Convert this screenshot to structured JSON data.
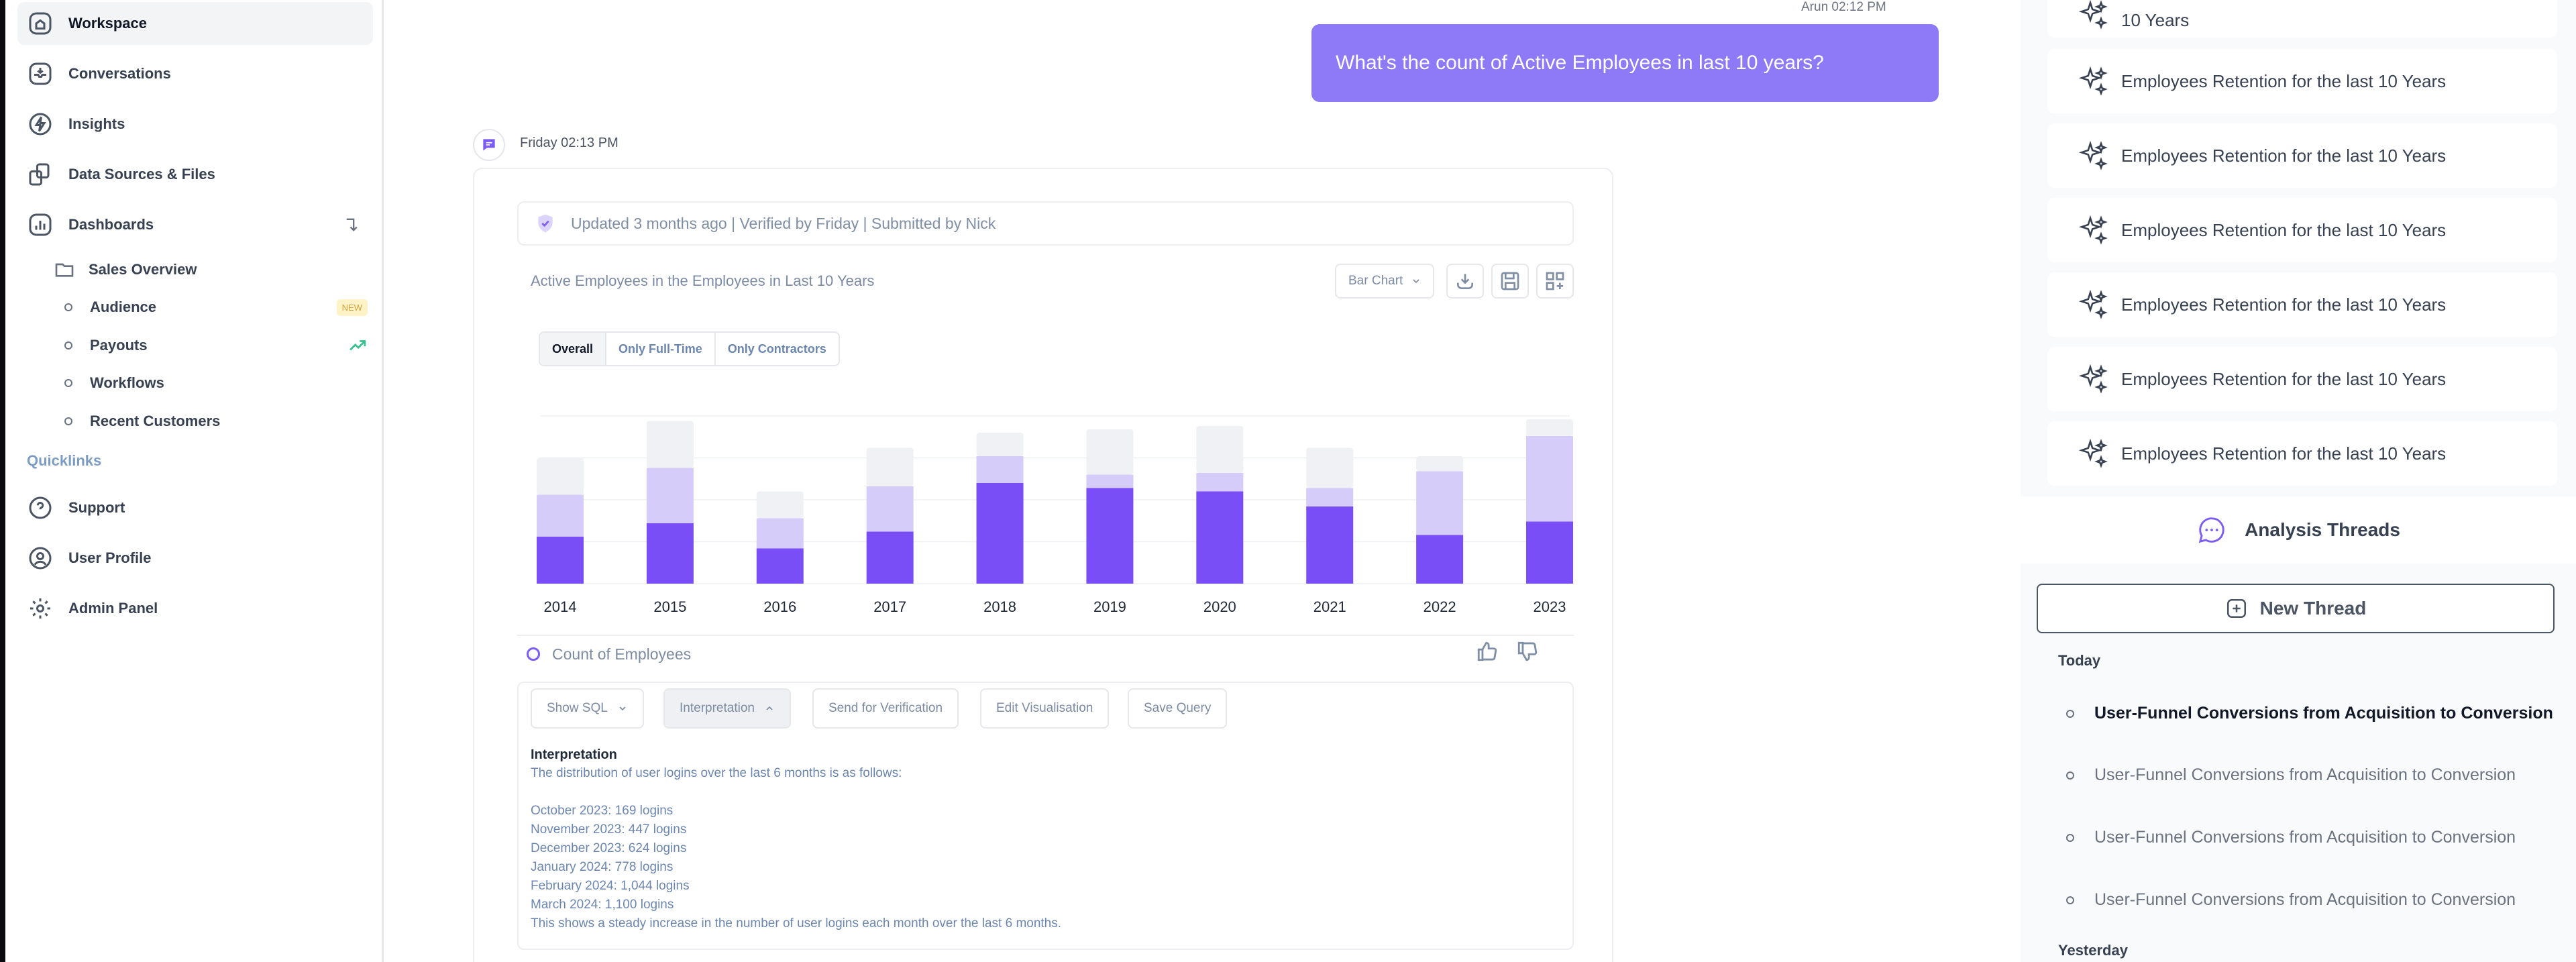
{
  "sidebar": {
    "nav": [
      {
        "label": "Workspace",
        "icon": "home-icon",
        "active": true
      },
      {
        "label": "Conversations",
        "icon": "inbox-icon"
      },
      {
        "label": "Insights",
        "icon": "bolt-icon"
      },
      {
        "label": "Data Sources & Files",
        "icon": "files-icon"
      },
      {
        "label": "Dashboards",
        "icon": "chart-icon"
      }
    ],
    "dashboards": {
      "folder": "Sales Overview",
      "items": [
        {
          "label": "Audience",
          "badge": "NEW"
        },
        {
          "label": "Payouts"
        },
        {
          "label": "Workflows"
        },
        {
          "label": "Recent Customers"
        }
      ]
    },
    "quicklinks_label": "Quicklinks",
    "quicklinks": [
      {
        "label": "Support",
        "icon": "help-icon"
      },
      {
        "label": "User Profile",
        "icon": "user-icon"
      },
      {
        "label": "Admin Panel",
        "icon": "gear-icon"
      }
    ]
  },
  "conversation": {
    "user_meta": "Arun 02:12 PM",
    "user_message": "What's the count of Active Employees in last 10 years?",
    "bot_meta": "Friday 02:13 PM",
    "verify_text": "Updated 3 months ago | Verified by Friday | Submitted by Nick",
    "chart_title": "Active Employees in the Employees in Last 10 Years",
    "chart_type_select": "Bar Chart",
    "tabs": [
      "Overall",
      "Only Full-Time",
      "Only Contractors"
    ],
    "measure_label": "Count of Employees",
    "actions": {
      "show_sql": "Show SQL",
      "interpretation": "Interpretation",
      "send_verification": "Send for Verification",
      "edit_visualisation": "Edit Visualisation",
      "save_query": "Save Query"
    },
    "interpretation": {
      "title": "Interpretation",
      "intro": "The distribution of user logins over the last 6 months is as follows:",
      "lines": [
        "October 2023: 169 logins",
        "November 2023: 447 logins",
        "December 2023: 624 logins",
        "January 2024: 778 logins",
        "February 2024: 1,044 logins",
        "March 2024: 1,100 logins"
      ],
      "summary": "This shows a steady increase in the number of user logins each month over the last 6 months."
    }
  },
  "chart_data": {
    "type": "bar",
    "stacked": true,
    "categories": [
      "2014",
      "2015",
      "2016",
      "2017",
      "2018",
      "2019",
      "2020",
      "2021",
      "2022",
      "2023"
    ],
    "series": [
      {
        "values": [
          28,
          36,
          21,
          31,
          60,
          57,
          55,
          46,
          29,
          37
        ]
      },
      {
        "values": [
          25,
          33,
          18,
          27,
          16,
          8,
          11,
          11,
          38,
          51
        ]
      },
      {
        "values": [
          22,
          28,
          16,
          23,
          14,
          27,
          28,
          24,
          9,
          10
        ]
      }
    ],
    "ylim": [
      0,
      100
    ],
    "colors": [
      "#7a4ef6",
      "#d6ccfa",
      "#eff1f4"
    ],
    "grid": true,
    "title": "",
    "xlabel": "",
    "ylabel": ""
  },
  "right_panel": {
    "recommendations": [
      "10 Years",
      "Employees Retention for the last 10 Years",
      "Employees Retention for the last 10 Years",
      "Employees Retention for the last 10 Years",
      "Employees Retention for the last 10 Years",
      "Employees Retention for the last 10 Years",
      "Employees Retention for the last 10 Years"
    ],
    "threads_title": "Analysis Threads",
    "new_thread_label": "New Thread",
    "today_label": "Today",
    "yesterday_label": "Yesterday",
    "threads": [
      "User-Funnel Conversions from Acquisition to Conversion",
      "User-Funnel Conversions from Acquisition to Conversion",
      "User-Funnel Conversions from Acquisition to Conversion",
      "User-Funnel Conversions from Acquisition to Conversion"
    ]
  }
}
